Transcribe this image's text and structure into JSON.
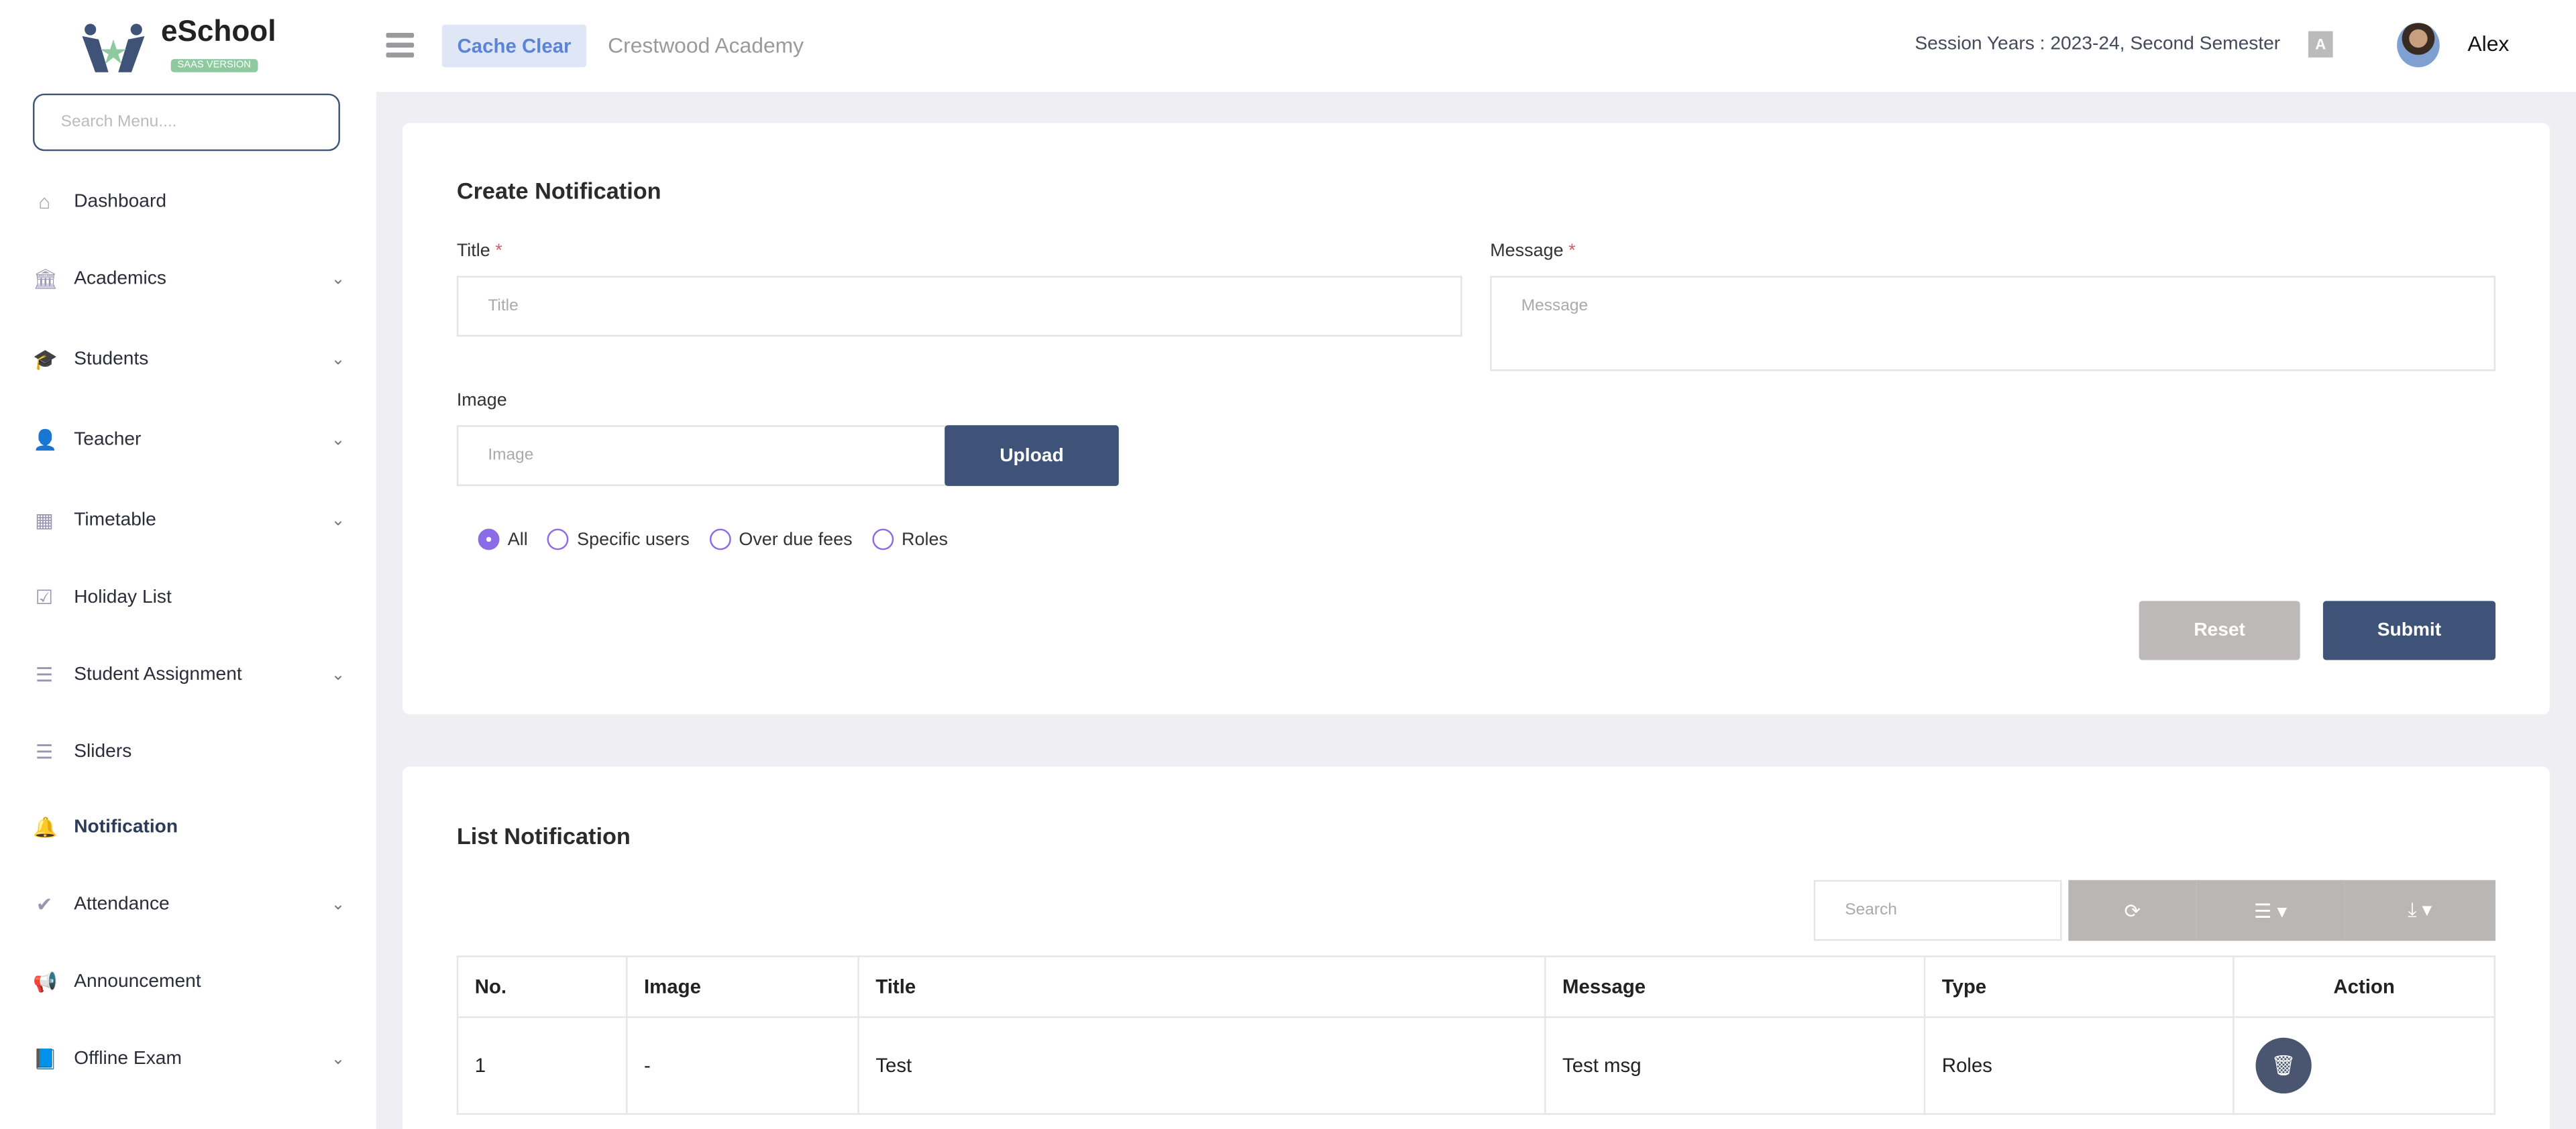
{
  "header": {
    "logo_title": "eSchool",
    "logo_badge": "SAAS VERSION",
    "cache_clear": "Cache Clear",
    "school_name": "Crestwood Academy",
    "session": "Session Years : 2023-24, Second Semester",
    "user_name": "Alex"
  },
  "sidebar": {
    "search_placeholder": "Search Menu....",
    "items": [
      {
        "label": "Dashboard",
        "icon": "home-icon"
      },
      {
        "label": "Academics",
        "icon": "bank-icon"
      },
      {
        "label": "Students",
        "icon": "graduation-cap-icon"
      },
      {
        "label": "Teacher",
        "icon": "user-icon"
      },
      {
        "label": "Timetable",
        "icon": "calendar-icon"
      },
      {
        "label": "Holiday List",
        "icon": "calendar-check-icon"
      },
      {
        "label": "Student Assignment",
        "icon": "list-icon"
      },
      {
        "label": "Sliders",
        "icon": "list-icon"
      },
      {
        "label": "Notification",
        "icon": "bell-icon",
        "active": true
      },
      {
        "label": "Attendance",
        "icon": "check-icon"
      },
      {
        "label": "Announcement",
        "icon": "bullhorn-icon"
      },
      {
        "label": "Offline Exam",
        "icon": "book-icon"
      }
    ]
  },
  "create": {
    "heading": "Create Notification",
    "title_label": "Title",
    "title_placeholder": "Title",
    "message_label": "Message",
    "message_placeholder": "Message",
    "required_mark": "*",
    "image_label": "Image",
    "image_placeholder": "Image",
    "upload": "Upload",
    "radios": [
      "All",
      "Specific users",
      "Over due fees",
      "Roles"
    ],
    "selected": "All",
    "reset": "Reset",
    "submit": "Submit"
  },
  "list": {
    "heading": "List Notification",
    "search_placeholder": "Search",
    "columns": [
      "No.",
      "Image",
      "Title",
      "Message",
      "Type",
      "Action"
    ],
    "rows": [
      {
        "no": "1",
        "image": "-",
        "title": "Test",
        "message": "Test msg",
        "type": "Roles"
      }
    ]
  },
  "colors": {
    "primary": "#3f5378",
    "reset": "#bdb9b9",
    "radio": "#8c6be6"
  }
}
